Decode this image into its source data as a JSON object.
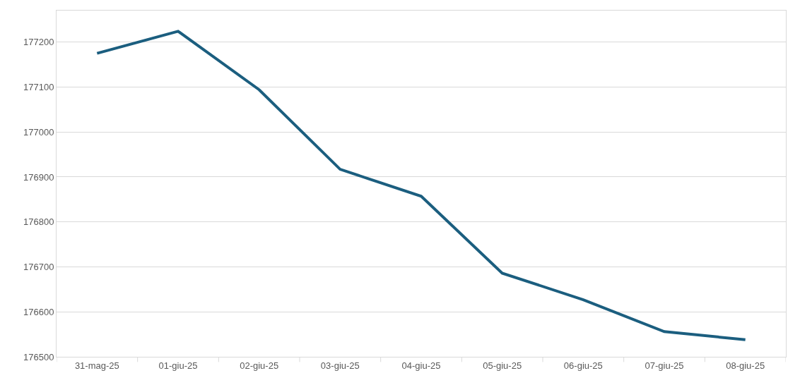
{
  "chart_data": {
    "type": "line",
    "categories": [
      "31-mag-25",
      "01-giu-25",
      "02-giu-25",
      "03-giu-25",
      "04-giu-25",
      "05-giu-25",
      "06-giu-25",
      "07-giu-25",
      "08-giu-25"
    ],
    "series": [
      {
        "color": "#1b5e7f",
        "values": [
          177175,
          177224,
          177094,
          176917,
          176857,
          176686,
          176627,
          176556,
          176538
        ]
      }
    ],
    "ylim": [
      176500,
      177270
    ],
    "yticks": [
      176500,
      176600,
      176700,
      176800,
      176900,
      177000,
      177100,
      177200
    ],
    "grid": "y",
    "marker": "none",
    "line_style": "solid"
  }
}
